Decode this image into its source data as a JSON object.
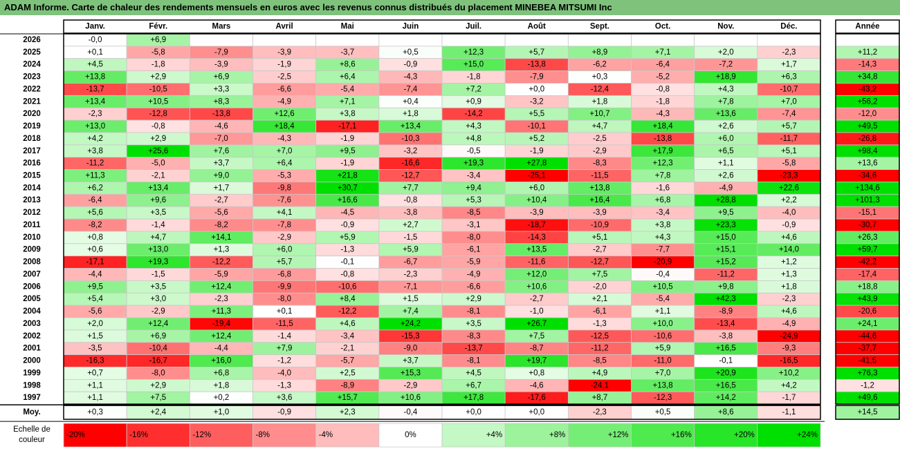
{
  "title": "ADAM Informe. Carte de chaleur des rendements mensuels en euros avec les revenus connus distribués du placement MINEBEA MITSUMI Inc",
  "chart_data": {
    "type": "heatmap",
    "months": [
      "Janv.",
      "Févr.",
      "Mars",
      "Avril",
      "Mai",
      "Juin",
      "Juil.",
      "Août",
      "Sept.",
      "Oct.",
      "Nov.",
      "Déc."
    ],
    "year_header": "Année",
    "rows": [
      {
        "year": "2026",
        "values": [
          -0.0,
          6.9,
          null,
          null,
          null,
          null,
          null,
          null,
          null,
          null,
          null,
          null
        ],
        "labels": [
          "-0,0",
          "+6,9",
          "",
          "",
          "",
          "",
          "",
          "",
          "",
          "",
          "",
          ""
        ],
        "annual": null,
        "annual_label": ""
      },
      {
        "year": "2025",
        "values": [
          0.1,
          -5.8,
          -7.9,
          -3.9,
          -3.7,
          0.5,
          12.3,
          5.7,
          8.9,
          7.1,
          2.0,
          -2.3
        ],
        "labels": [
          "+0,1",
          "-5,8",
          "-7,9",
          "-3,9",
          "-3,7",
          "+0,5",
          "+12,3",
          "+5,7",
          "+8,9",
          "+7,1",
          "+2,0",
          "-2,3"
        ],
        "annual": 11.2,
        "annual_label": "+11,2"
      },
      {
        "year": "2024",
        "values": [
          4.5,
          -1.8,
          -3.9,
          -1.9,
          8.6,
          -0.9,
          15.0,
          -13.8,
          -6.2,
          -6.4,
          -7.2,
          1.7
        ],
        "labels": [
          "+4,5",
          "-1,8",
          "-3,9",
          "-1,9",
          "+8,6",
          "-0,9",
          "+15,0",
          "-13,8",
          "-6,2",
          "-6,4",
          "-7,2",
          "+1,7"
        ],
        "annual": -14.3,
        "annual_label": "-14,3"
      },
      {
        "year": "2023",
        "values": [
          13.8,
          2.9,
          6.9,
          -2.5,
          6.4,
          -4.3,
          -1.8,
          -7.9,
          0.3,
          -5.2,
          18.9,
          6.3
        ],
        "labels": [
          "+13,8",
          "+2,9",
          "+6,9",
          "-2,5",
          "+6,4",
          "-4,3",
          "-1,8",
          "-7,9",
          "+0,3",
          "-5,2",
          "+18,9",
          "+6,3"
        ],
        "annual": 34.8,
        "annual_label": "+34,8"
      },
      {
        "year": "2022",
        "values": [
          -13.7,
          -10.5,
          3.3,
          -6.6,
          -5.4,
          -7.4,
          7.2,
          0.0,
          -12.4,
          -0.8,
          4.3,
          -10.7
        ],
        "labels": [
          "-13,7",
          "-10,5",
          "+3,3",
          "-6,6",
          "-5,4",
          "-7,4",
          "+7,2",
          "+0,0",
          "-12,4",
          "-0,8",
          "+4,3",
          "-10,7"
        ],
        "annual": -43.2,
        "annual_label": "-43,2"
      },
      {
        "year": "2021",
        "values": [
          13.4,
          10.5,
          8.3,
          -4.9,
          7.1,
          0.4,
          0.9,
          -3.2,
          1.8,
          -1.8,
          7.8,
          7.0
        ],
        "labels": [
          "+13,4",
          "+10,5",
          "+8,3",
          "-4,9",
          "+7,1",
          "+0,4",
          "+0,9",
          "-3,2",
          "+1,8",
          "-1,8",
          "+7,8",
          "+7,0"
        ],
        "annual": 56.2,
        "annual_label": "+56,2"
      },
      {
        "year": "2020",
        "values": [
          -2.3,
          -12.8,
          -13.8,
          12.6,
          3.8,
          1.8,
          -14.2,
          5.5,
          10.7,
          -4.3,
          13.6,
          -7.4
        ],
        "labels": [
          "-2,3",
          "-12,8",
          "-13,8",
          "+12,6",
          "+3,8",
          "+1,8",
          "-14,2",
          "+5,5",
          "+10,7",
          "-4,3",
          "+13,6",
          "-7,4"
        ],
        "annual": -12.0,
        "annual_label": "-12,0"
      },
      {
        "year": "2019",
        "values": [
          13.0,
          -0.8,
          -4.6,
          18.4,
          -17.1,
          13.4,
          4.3,
          -10.1,
          4.7,
          18.4,
          2.6,
          5.7
        ],
        "labels": [
          "+13,0",
          "-0,8",
          "-4,6",
          "+18,4",
          "-17,1",
          "+13,4",
          "+4,3",
          "-10,1",
          "+4,7",
          "+18,4",
          "+2,6",
          "+5,7"
        ],
        "annual": 49.5,
        "annual_label": "+49,5"
      },
      {
        "year": "2018",
        "values": [
          4.2,
          2.9,
          -7.0,
          -4.3,
          -1.9,
          -10.3,
          4.8,
          5.2,
          -2.5,
          -13.8,
          6.0,
          -11.7
        ],
        "labels": [
          "+4,2",
          "+2,9",
          "-7,0",
          "-4,3",
          "-1,9",
          "-10,3",
          "+4,8",
          "+5,2",
          "-2,5",
          "-13,8",
          "+6,0",
          "-11,7"
        ],
        "annual": -26.8,
        "annual_label": "-26,8"
      },
      {
        "year": "2017",
        "values": [
          3.8,
          25.6,
          7.6,
          7.0,
          9.5,
          -3.2,
          -0.5,
          -1.9,
          -2.9,
          17.9,
          6.5,
          5.1
        ],
        "labels": [
          "+3,8",
          "+25,6",
          "+7,6",
          "+7,0",
          "+9,5",
          "-3,2",
          "-0,5",
          "-1,9",
          "-2,9",
          "+17,9",
          "+6,5",
          "+5,1"
        ],
        "annual": 98.4,
        "annual_label": "+98,4"
      },
      {
        "year": "2016",
        "values": [
          -11.2,
          -5.0,
          3.7,
          6.4,
          -1.9,
          -16.6,
          19.3,
          27.8,
          -8.3,
          12.3,
          1.1,
          -5.8
        ],
        "labels": [
          "-11,2",
          "-5,0",
          "+3,7",
          "+6,4",
          "-1,9",
          "-16,6",
          "+19,3",
          "+27,8",
          "-8,3",
          "+12,3",
          "+1,1",
          "-5,8"
        ],
        "annual": 13.6,
        "annual_label": "+13,6"
      },
      {
        "year": "2015",
        "values": [
          11.3,
          -2.1,
          9.0,
          -5.3,
          21.8,
          -12.7,
          -3.4,
          -25.1,
          -11.5,
          7.8,
          2.6,
          -23.3
        ],
        "labels": [
          "+11,3",
          "-2,1",
          "+9,0",
          "-5,3",
          "+21,8",
          "-12,7",
          "-3,4",
          "-25,1",
          "-11,5",
          "+7,8",
          "+2,6",
          "-23,3"
        ],
        "annual": -34.6,
        "annual_label": "-34,6"
      },
      {
        "year": "2014",
        "values": [
          6.2,
          13.4,
          1.7,
          -9.8,
          30.7,
          7.7,
          9.4,
          6.0,
          13.8,
          -1.6,
          -4.9,
          22.6
        ],
        "labels": [
          "+6,2",
          "+13,4",
          "+1,7",
          "-9,8",
          "+30,7",
          "+7,7",
          "+9,4",
          "+6,0",
          "+13,8",
          "-1,6",
          "-4,9",
          "+22,6"
        ],
        "annual": 134.6,
        "annual_label": "+134,6"
      },
      {
        "year": "2013",
        "values": [
          -6.4,
          9.6,
          -2.7,
          -7.6,
          16.6,
          -0.8,
          5.3,
          10.4,
          16.4,
          6.8,
          28.8,
          2.2
        ],
        "labels": [
          "-6,4",
          "+9,6",
          "-2,7",
          "-7,6",
          "+16,6",
          "-0,8",
          "+5,3",
          "+10,4",
          "+16,4",
          "+6,8",
          "+28,8",
          "+2,2"
        ],
        "annual": 101.3,
        "annual_label": "+101,3"
      },
      {
        "year": "2012",
        "values": [
          5.6,
          3.5,
          -5.6,
          4.1,
          -4.5,
          -3.8,
          -8.5,
          -3.9,
          -3.9,
          -3.4,
          9.5,
          -4.0
        ],
        "labels": [
          "+5,6",
          "+3,5",
          "-5,6",
          "+4,1",
          "-4,5",
          "-3,8",
          "-8,5",
          "-3,9",
          "-3,9",
          "-3,4",
          "+9,5",
          "-4,0"
        ],
        "annual": -15.1,
        "annual_label": "-15,1"
      },
      {
        "year": "2011",
        "values": [
          -8.2,
          -1.4,
          -8.2,
          -7.8,
          -0.9,
          2.7,
          -3.1,
          -18.7,
          -10.9,
          3.8,
          23.3,
          -0.9
        ],
        "labels": [
          "-8,2",
          "-1,4",
          "-8,2",
          "-7,8",
          "-0,9",
          "+2,7",
          "-3,1",
          "-18,7",
          "-10,9",
          "+3,8",
          "+23,3",
          "-0,9"
        ],
        "annual": -30.7,
        "annual_label": "-30,7"
      },
      {
        "year": "2010",
        "values": [
          0.8,
          4.7,
          14.1,
          -2.9,
          5.9,
          -1.5,
          -8.0,
          -14.3,
          5.1,
          4.3,
          15.0,
          4.6
        ],
        "labels": [
          "+0,8",
          "+4,7",
          "+14,1",
          "-2,9",
          "+5,9",
          "-1,5",
          "-8,0",
          "-14,3",
          "+5,1",
          "+4,3",
          "+15,0",
          "+4,6"
        ],
        "annual": 26.3,
        "annual_label": "+26,3"
      },
      {
        "year": "2009",
        "values": [
          0.6,
          13.0,
          1.3,
          6.0,
          -1.3,
          5.9,
          -6.1,
          13.5,
          -2.7,
          -7.7,
          15.1,
          14.0
        ],
        "labels": [
          "+0,6",
          "+13,0",
          "+1,3",
          "+6,0",
          "-1,3",
          "+5,9",
          "-6,1",
          "+13,5",
          "-2,7",
          "-7,7",
          "+15,1",
          "+14,0"
        ],
        "annual": 59.7,
        "annual_label": "+59,7"
      },
      {
        "year": "2008",
        "values": [
          -17.1,
          19.3,
          -12.2,
          5.7,
          -0.1,
          -6.7,
          -5.9,
          -11.6,
          -12.7,
          -20.9,
          15.2,
          1.2
        ],
        "labels": [
          "-17,1",
          "+19,3",
          "-12,2",
          "+5,7",
          "-0,1",
          "-6,7",
          "-5,9",
          "-11,6",
          "-12,7",
          "-20,9",
          "+15,2",
          "+1,2"
        ],
        "annual": -42.2,
        "annual_label": "-42,2"
      },
      {
        "year": "2007",
        "values": [
          -4.4,
          -1.5,
          -5.9,
          -6.8,
          -0.8,
          -2.3,
          -4.9,
          12.0,
          7.5,
          -0.4,
          -11.2,
          1.3
        ],
        "labels": [
          "-4,4",
          "-1,5",
          "-5,9",
          "-6,8",
          "-0,8",
          "-2,3",
          "-4,9",
          "+12,0",
          "+7,5",
          "-0,4",
          "-11,2",
          "+1,3"
        ],
        "annual": -17.4,
        "annual_label": "-17,4"
      },
      {
        "year": "2006",
        "values": [
          9.5,
          3.5,
          12.4,
          -9.9,
          -10.6,
          -7.1,
          -6.6,
          10.6,
          -2.0,
          10.5,
          9.8,
          1.8
        ],
        "labels": [
          "+9,5",
          "+3,5",
          "+12,4",
          "-9,9",
          "-10,6",
          "-7,1",
          "-6,6",
          "+10,6",
          "-2,0",
          "+10,5",
          "+9,8",
          "+1,8"
        ],
        "annual": 18.8,
        "annual_label": "+18,8"
      },
      {
        "year": "2005",
        "values": [
          5.4,
          3.0,
          -2.3,
          -8.0,
          8.4,
          1.5,
          2.9,
          -2.7,
          2.1,
          -5.4,
          42.3,
          -2.3
        ],
        "labels": [
          "+5,4",
          "+3,0",
          "-2,3",
          "-8,0",
          "+8,4",
          "+1,5",
          "+2,9",
          "-2,7",
          "+2,1",
          "-5,4",
          "+42,3",
          "-2,3"
        ],
        "annual": 43.9,
        "annual_label": "+43,9"
      },
      {
        "year": "2004",
        "values": [
          -5.6,
          -2.9,
          11.3,
          0.1,
          -12.2,
          7.4,
          -8.1,
          -1.0,
          -6.1,
          1.1,
          -8.9,
          4.6
        ],
        "labels": [
          "-5,6",
          "-2,9",
          "+11,3",
          "+0,1",
          "-12,2",
          "+7,4",
          "-8,1",
          "-1,0",
          "-6,1",
          "+1,1",
          "-8,9",
          "+4,6"
        ],
        "annual": -20.6,
        "annual_label": "-20,6"
      },
      {
        "year": "2003",
        "values": [
          2.0,
          12.4,
          -19.4,
          -11.5,
          4.6,
          24.2,
          3.5,
          26.7,
          -1.3,
          10.0,
          -13.4,
          -4.9
        ],
        "labels": [
          "+2,0",
          "+12,4",
          "-19,4",
          "-11,5",
          "+4,6",
          "+24,2",
          "+3,5",
          "+26,7",
          "-1,3",
          "+10,0",
          "-13,4",
          "-4,9"
        ],
        "annual": 24.1,
        "annual_label": "+24,1"
      },
      {
        "year": "2002",
        "values": [
          1.5,
          6.9,
          12.4,
          -1.4,
          -3.4,
          -15.3,
          -8.3,
          7.5,
          -12.5,
          -10.6,
          -3.8,
          -24.9
        ],
        "labels": [
          "+1,5",
          "+6,9",
          "+12,4",
          "-1,4",
          "-3,4",
          "-15,3",
          "-8,3",
          "+7,5",
          "-12,5",
          "-10,6",
          "-3,8",
          "-24,9"
        ],
        "annual": -44.6,
        "annual_label": "-44,6"
      },
      {
        "year": "2001",
        "values": [
          -3.5,
          -10.4,
          -4.4,
          7.9,
          -2.1,
          -9.0,
          -13.7,
          -8.7,
          -11.2,
          5.9,
          16.5,
          -9.3
        ],
        "labels": [
          "-3,5",
          "-10,4",
          "-4,4",
          "+7,9",
          "-2,1",
          "-9,0",
          "-13,7",
          "-8,7",
          "-11,2",
          "+5,9",
          "+16,5",
          "-9,3"
        ],
        "annual": -37.7,
        "annual_label": "-37,7"
      },
      {
        "year": "2000",
        "values": [
          -16.3,
          -16.7,
          16.0,
          -1.2,
          -5.7,
          3.7,
          -8.1,
          19.7,
          -8.5,
          -11.0,
          -0.1,
          -16.5
        ],
        "labels": [
          "-16,3",
          "-16,7",
          "+16,0",
          "-1,2",
          "-5,7",
          "+3,7",
          "-8,1",
          "+19,7",
          "-8,5",
          "-11,0",
          "-0,1",
          "-16,5"
        ],
        "annual": -41.5,
        "annual_label": "-41,5"
      },
      {
        "year": "1999",
        "values": [
          0.7,
          -8.0,
          6.8,
          -4.0,
          2.5,
          15.3,
          4.5,
          0.8,
          4.9,
          7.0,
          20.9,
          10.2
        ],
        "labels": [
          "+0,7",
          "-8,0",
          "+6,8",
          "-4,0",
          "+2,5",
          "+15,3",
          "+4,5",
          "+0,8",
          "+4,9",
          "+7,0",
          "+20,9",
          "+10,2"
        ],
        "annual": 76.3,
        "annual_label": "+76,3"
      },
      {
        "year": "1998",
        "values": [
          1.1,
          2.9,
          1.8,
          -1.3,
          -8.9,
          -2.9,
          6.7,
          -4.6,
          -24.1,
          13.8,
          16.5,
          4.2
        ],
        "labels": [
          "+1,1",
          "+2,9",
          "+1,8",
          "-1,3",
          "-8,9",
          "-2,9",
          "+6,7",
          "-4,6",
          "-24,1",
          "+13,8",
          "+16,5",
          "+4,2"
        ],
        "annual": -1.2,
        "annual_label": "-1,2"
      },
      {
        "year": "1997",
        "values": [
          1.1,
          7.5,
          0.2,
          3.6,
          15.7,
          10.6,
          17.8,
          -17.6,
          8.7,
          -12.3,
          14.2,
          -1.7
        ],
        "labels": [
          "+1,1",
          "+7,5",
          "+0,2",
          "+3,6",
          "+15,7",
          "+10,6",
          "+17,8",
          "-17,6",
          "+8,7",
          "-12,3",
          "+14,2",
          "-1,7"
        ],
        "annual": 49.6,
        "annual_label": "+49,6"
      }
    ],
    "average": {
      "label": "Moy.",
      "values": [
        0.3,
        2.4,
        1.0,
        -0.9,
        2.3,
        -0.4,
        0.0,
        0.0,
        -2.3,
        0.5,
        8.6,
        -1.1
      ],
      "labels": [
        "+0,3",
        "+2,4",
        "+1,0",
        "-0,9",
        "+2,3",
        "-0,4",
        "+0,0",
        "+0,0",
        "-2,3",
        "+0,5",
        "+8,6",
        "-1,1"
      ],
      "annual": 14.5,
      "annual_label": "+14,5"
    },
    "scale": {
      "label_line1": "Echelle de",
      "label_line2": "couleur",
      "values": [
        -20,
        -16,
        -12,
        -8,
        -4,
        0,
        4,
        8,
        12,
        16,
        20,
        24
      ],
      "labels": [
        "-20%",
        "-16%",
        "-12%",
        "-8%",
        "-4%",
        "0%",
        "+4%",
        "+8%",
        "+12%",
        "+16%",
        "+20%",
        "+24%"
      ]
    },
    "colors": {
      "negative_strong": "#ff0000",
      "positive_strong": "#00e000",
      "neutral": "#ffffff",
      "title_bar": "#7ec27c"
    }
  }
}
